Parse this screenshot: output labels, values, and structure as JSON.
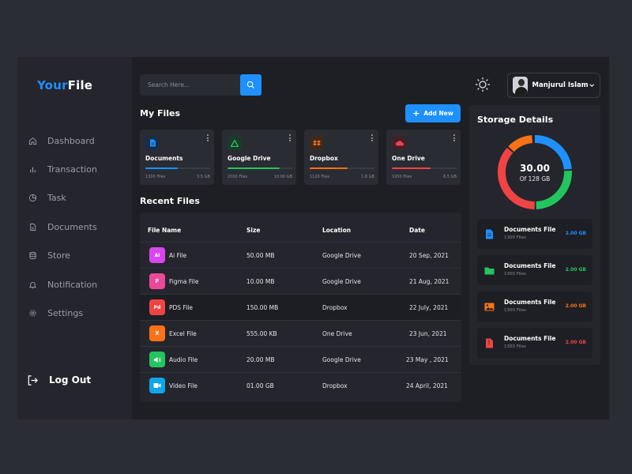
{
  "app": {
    "logo_a": "Your",
    "logo_b": "File"
  },
  "sidebar": {
    "items": [
      {
        "label": "Dashboard",
        "icon": "home-icon"
      },
      {
        "label": "Transaction",
        "icon": "bar-chart-icon"
      },
      {
        "label": "Task",
        "icon": "pie-chart-icon"
      },
      {
        "label": "Documents",
        "icon": "document-icon"
      },
      {
        "label": "Store",
        "icon": "database-icon"
      },
      {
        "label": "Notification",
        "icon": "bell-icon"
      },
      {
        "label": "Settings",
        "icon": "gear-icon"
      }
    ],
    "logout": "Log Out"
  },
  "search": {
    "placeholder": "Search Here..."
  },
  "user": {
    "name": "Manjurul Islam"
  },
  "my_files": {
    "title": "My Files",
    "add_label": "Add New",
    "cards": [
      {
        "name": "Documents",
        "files": "1300 Files",
        "size": "3.5 GB",
        "color": "#1e90ff",
        "progress": 0.5
      },
      {
        "name": "Google Drive",
        "files": "2000 Files",
        "size": "10.00 GB",
        "color": "#22c55e",
        "progress": 0.8
      },
      {
        "name": "Dropbox",
        "files": "1120 Files",
        "size": "1.8 GB",
        "color": "#f97316",
        "progress": 0.58
      },
      {
        "name": "One Drive",
        "files": "1950 Files",
        "size": "6.5 GB",
        "color": "#ef4444",
        "progress": 0.6
      }
    ]
  },
  "recent": {
    "title": "Recent Files",
    "headers": {
      "name": "File Name",
      "size": "Size",
      "location": "Location",
      "date": "Date"
    },
    "rows": [
      {
        "icon_text": "Ai",
        "color": "#d946ef",
        "name": "Ai File",
        "size": "50.00 MB",
        "location": "Google Drive",
        "date": "20 Sep, 2021"
      },
      {
        "icon_text": "F",
        "color": "#ec4899",
        "name": "Figma File",
        "size": "10.00 MB",
        "location": "Google Drive",
        "date": "21 Aug, 2021"
      },
      {
        "icon_text": "Pd",
        "color": "#ef4444",
        "name": "PDS File",
        "size": "150.00 MB",
        "location": "Dropbox",
        "date": "22 July, 2021"
      },
      {
        "icon_text": "X",
        "color": "#f97316",
        "name": "Excel File",
        "size": "555.00 KB",
        "location": "One Drive",
        "date": "23 Jun, 2021"
      },
      {
        "icon_text": "",
        "color": "#22c55e",
        "name": "Audio File",
        "size": "20.00 MB",
        "location": "Google Drive",
        "date": "23 May , 2021"
      },
      {
        "icon_text": "",
        "color": "#0ea5e9",
        "name": "Video File",
        "size": "01.00 GB",
        "location": "Dropbox",
        "date": "24 April, 2021"
      }
    ]
  },
  "storage": {
    "title": "Storage Details",
    "used": "30.00",
    "of": "Of 128 GB",
    "items": [
      {
        "name": "Documents File",
        "files": "1300 Files",
        "size": "2.00 GB",
        "color": "#1e90ff"
      },
      {
        "name": "Documents File",
        "files": "1300 Files",
        "size": "2.00 GB",
        "color": "#22c55e"
      },
      {
        "name": "Documents File",
        "files": "1300 Files",
        "size": "2.00 GB",
        "color": "#f97316"
      },
      {
        "name": "Documents File",
        "files": "1300 Files",
        "size": "2.00 GB",
        "color": "#ef4444"
      }
    ]
  }
}
